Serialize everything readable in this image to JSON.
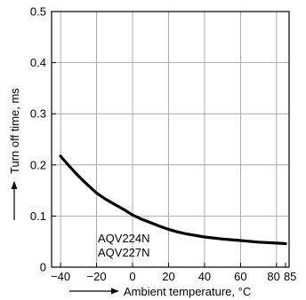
{
  "chart_data": {
    "type": "line",
    "xlabel": "Ambient temperature, °C",
    "ylabel": "Turn off time, ms",
    "xlim": [
      -45,
      87
    ],
    "ylim": [
      0,
      0.5
    ],
    "x_ticks": [
      -40,
      -20,
      0,
      20,
      40,
      60,
      80,
      85
    ],
    "x_tick_labels": [
      "−40",
      "−20",
      "0",
      "20",
      "40",
      "60",
      "80",
      "85"
    ],
    "y_ticks": [
      0,
      0.1,
      0.2,
      0.3,
      0.4,
      0.5
    ],
    "y_tick_labels": [
      "0",
      "0.1",
      "0.2",
      "0.3",
      "0.4",
      "0.5"
    ],
    "grid": true,
    "annotation": [
      "AQV224N",
      "AQV227N"
    ],
    "series": [
      {
        "x": [
          -40,
          -35,
          -30,
          -25,
          -20,
          -15,
          -10,
          -5,
          0,
          5,
          10,
          15,
          20,
          25,
          30,
          40,
          50,
          60,
          70,
          80,
          85
        ],
        "y": [
          0.217,
          0.197,
          0.178,
          0.161,
          0.145,
          0.133,
          0.123,
          0.113,
          0.102,
          0.094,
          0.087,
          0.08,
          0.074,
          0.069,
          0.065,
          0.059,
          0.055,
          0.052,
          0.049,
          0.047,
          0.046
        ]
      }
    ]
  }
}
